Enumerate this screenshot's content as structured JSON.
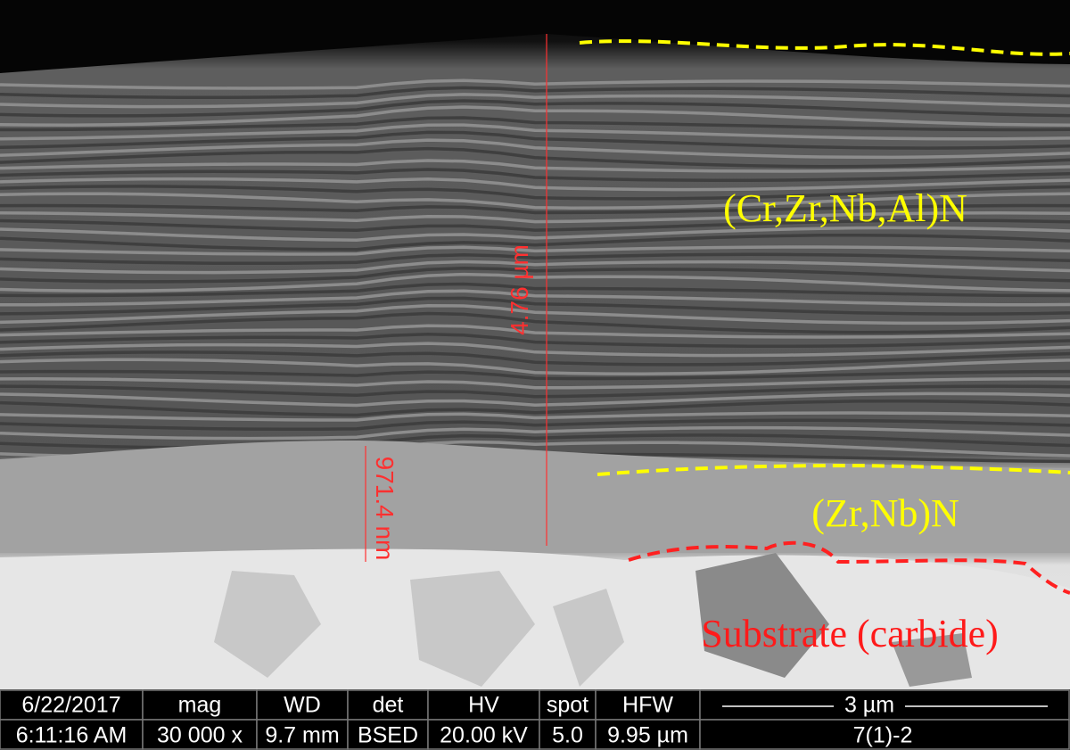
{
  "annotations": {
    "coating": "(Cr,Zr,Nb,Al)N",
    "interlayer": "(Zr,Nb)N",
    "substrate": "Substrate (carbide)"
  },
  "measurements": {
    "total": "4.76 µm",
    "interlayer": "971.4 nm"
  },
  "info_bar": {
    "columns": [
      {
        "header": "6/22/2017",
        "value": "6:11:16 AM"
      },
      {
        "header": "mag",
        "value": "30 000 x"
      },
      {
        "header": "WD",
        "value": "9.7 mm"
      },
      {
        "header": "det",
        "value": "BSED"
      },
      {
        "header": "HV",
        "value": "20.00 kV"
      },
      {
        "header": "spot",
        "value": "5.0"
      },
      {
        "header": "HFW",
        "value": "9.95 µm"
      }
    ],
    "scale_bar": "3 µm",
    "sample": "7(1)-2"
  }
}
